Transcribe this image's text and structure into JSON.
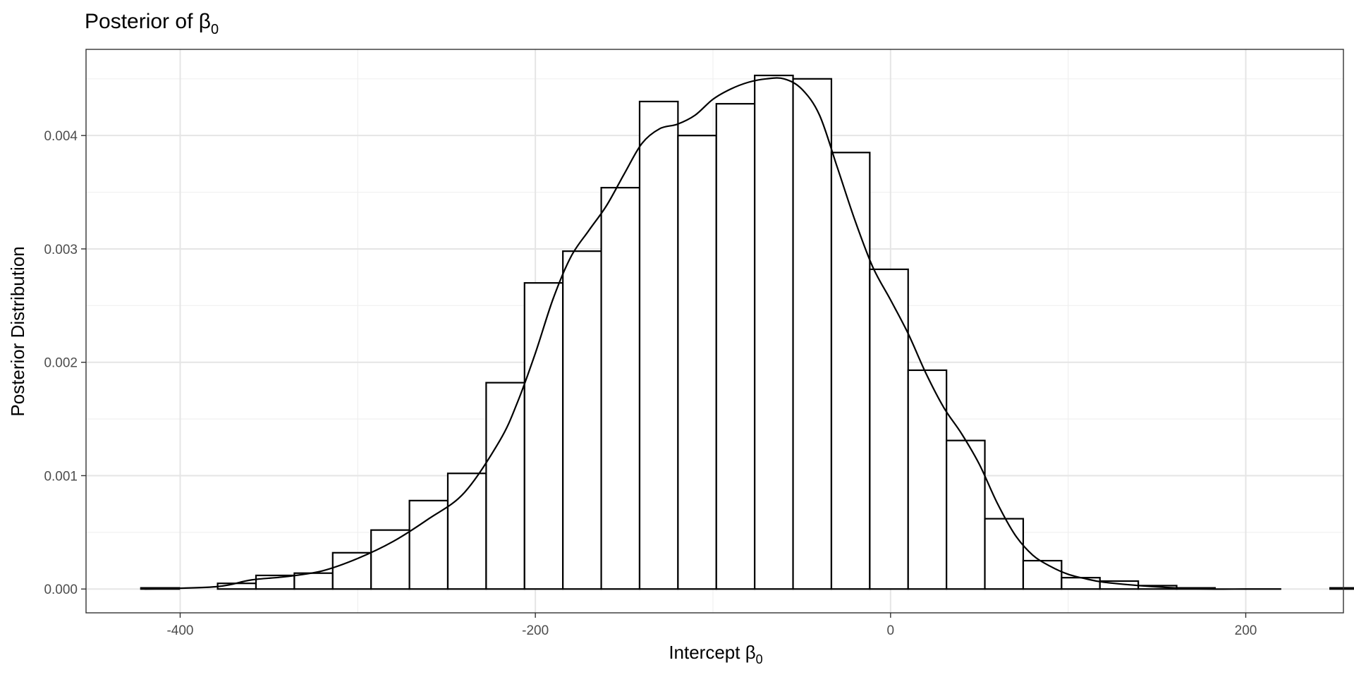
{
  "chart_data": {
    "type": "bar",
    "subtype": "histogram-with-density",
    "title": "Posterior of β",
    "title_subscript": "0",
    "xlabel": "Intercept β",
    "xlabel_subscript": "0",
    "ylabel": "Posterior Distribution",
    "xlim": [
      -453,
      255
    ],
    "ylim": [
      -0.00021,
      0.00476
    ],
    "x_ticks": [
      -400,
      -200,
      0,
      200
    ],
    "x_tick_labels": [
      "-400",
      "-200",
      "0",
      "200"
    ],
    "y_ticks": [
      0,
      0.001,
      0.002,
      0.003,
      0.004
    ],
    "y_tick_labels": [
      "0.000",
      "0.001",
      "0.002",
      "0.003",
      "0.004"
    ],
    "grid": true,
    "bin_width": 21.6,
    "bins_start": -422.1,
    "values": [
      1e-05,
      0.0,
      5e-05,
      0.00012,
      0.00014,
      0.00032,
      0.00052,
      0.00078,
      0.00102,
      0.00182,
      0.0027,
      0.00298,
      0.00354,
      0.0043,
      0.004,
      0.00428,
      0.00453,
      0.0045,
      0.00385,
      0.00282,
      0.00193,
      0.00131,
      0.00062,
      0.00025,
      0.0001,
      7e-05,
      3e-05,
      1e-05,
      0.0,
      0.0,
      0.0,
      1e-05
    ],
    "density_curve": {
      "x": [
        -420,
        -380,
        -360,
        -340,
        -320,
        -300,
        -280,
        -260,
        -240,
        -220,
        -210,
        -200,
        -190,
        -180,
        -170,
        -160,
        -150,
        -140,
        -130,
        -120,
        -110,
        -100,
        -90,
        -80,
        -70,
        -60,
        -50,
        -40,
        -30,
        -20,
        -10,
        0,
        10,
        20,
        30,
        40,
        50,
        60,
        70,
        80,
        90,
        100,
        110,
        120,
        140,
        160,
        180,
        200,
        220
      ],
      "y": [
        0.0,
        2e-05,
        8e-05,
        0.00011,
        0.00016,
        0.00027,
        0.00042,
        0.00062,
        0.00085,
        0.00131,
        0.00165,
        0.00208,
        0.00256,
        0.00293,
        0.00316,
        0.00338,
        0.00366,
        0.00393,
        0.00406,
        0.0041,
        0.00418,
        0.00432,
        0.00441,
        0.00447,
        0.0045,
        0.0045,
        0.00441,
        0.00418,
        0.00372,
        0.00325,
        0.00284,
        0.00255,
        0.00225,
        0.0019,
        0.0016,
        0.00137,
        0.0011,
        0.00076,
        0.00048,
        0.0003,
        0.0002,
        0.00013,
        9e-05,
        6e-05,
        3e-05,
        1e-05,
        0.0,
        0.0,
        0.0
      ]
    }
  }
}
